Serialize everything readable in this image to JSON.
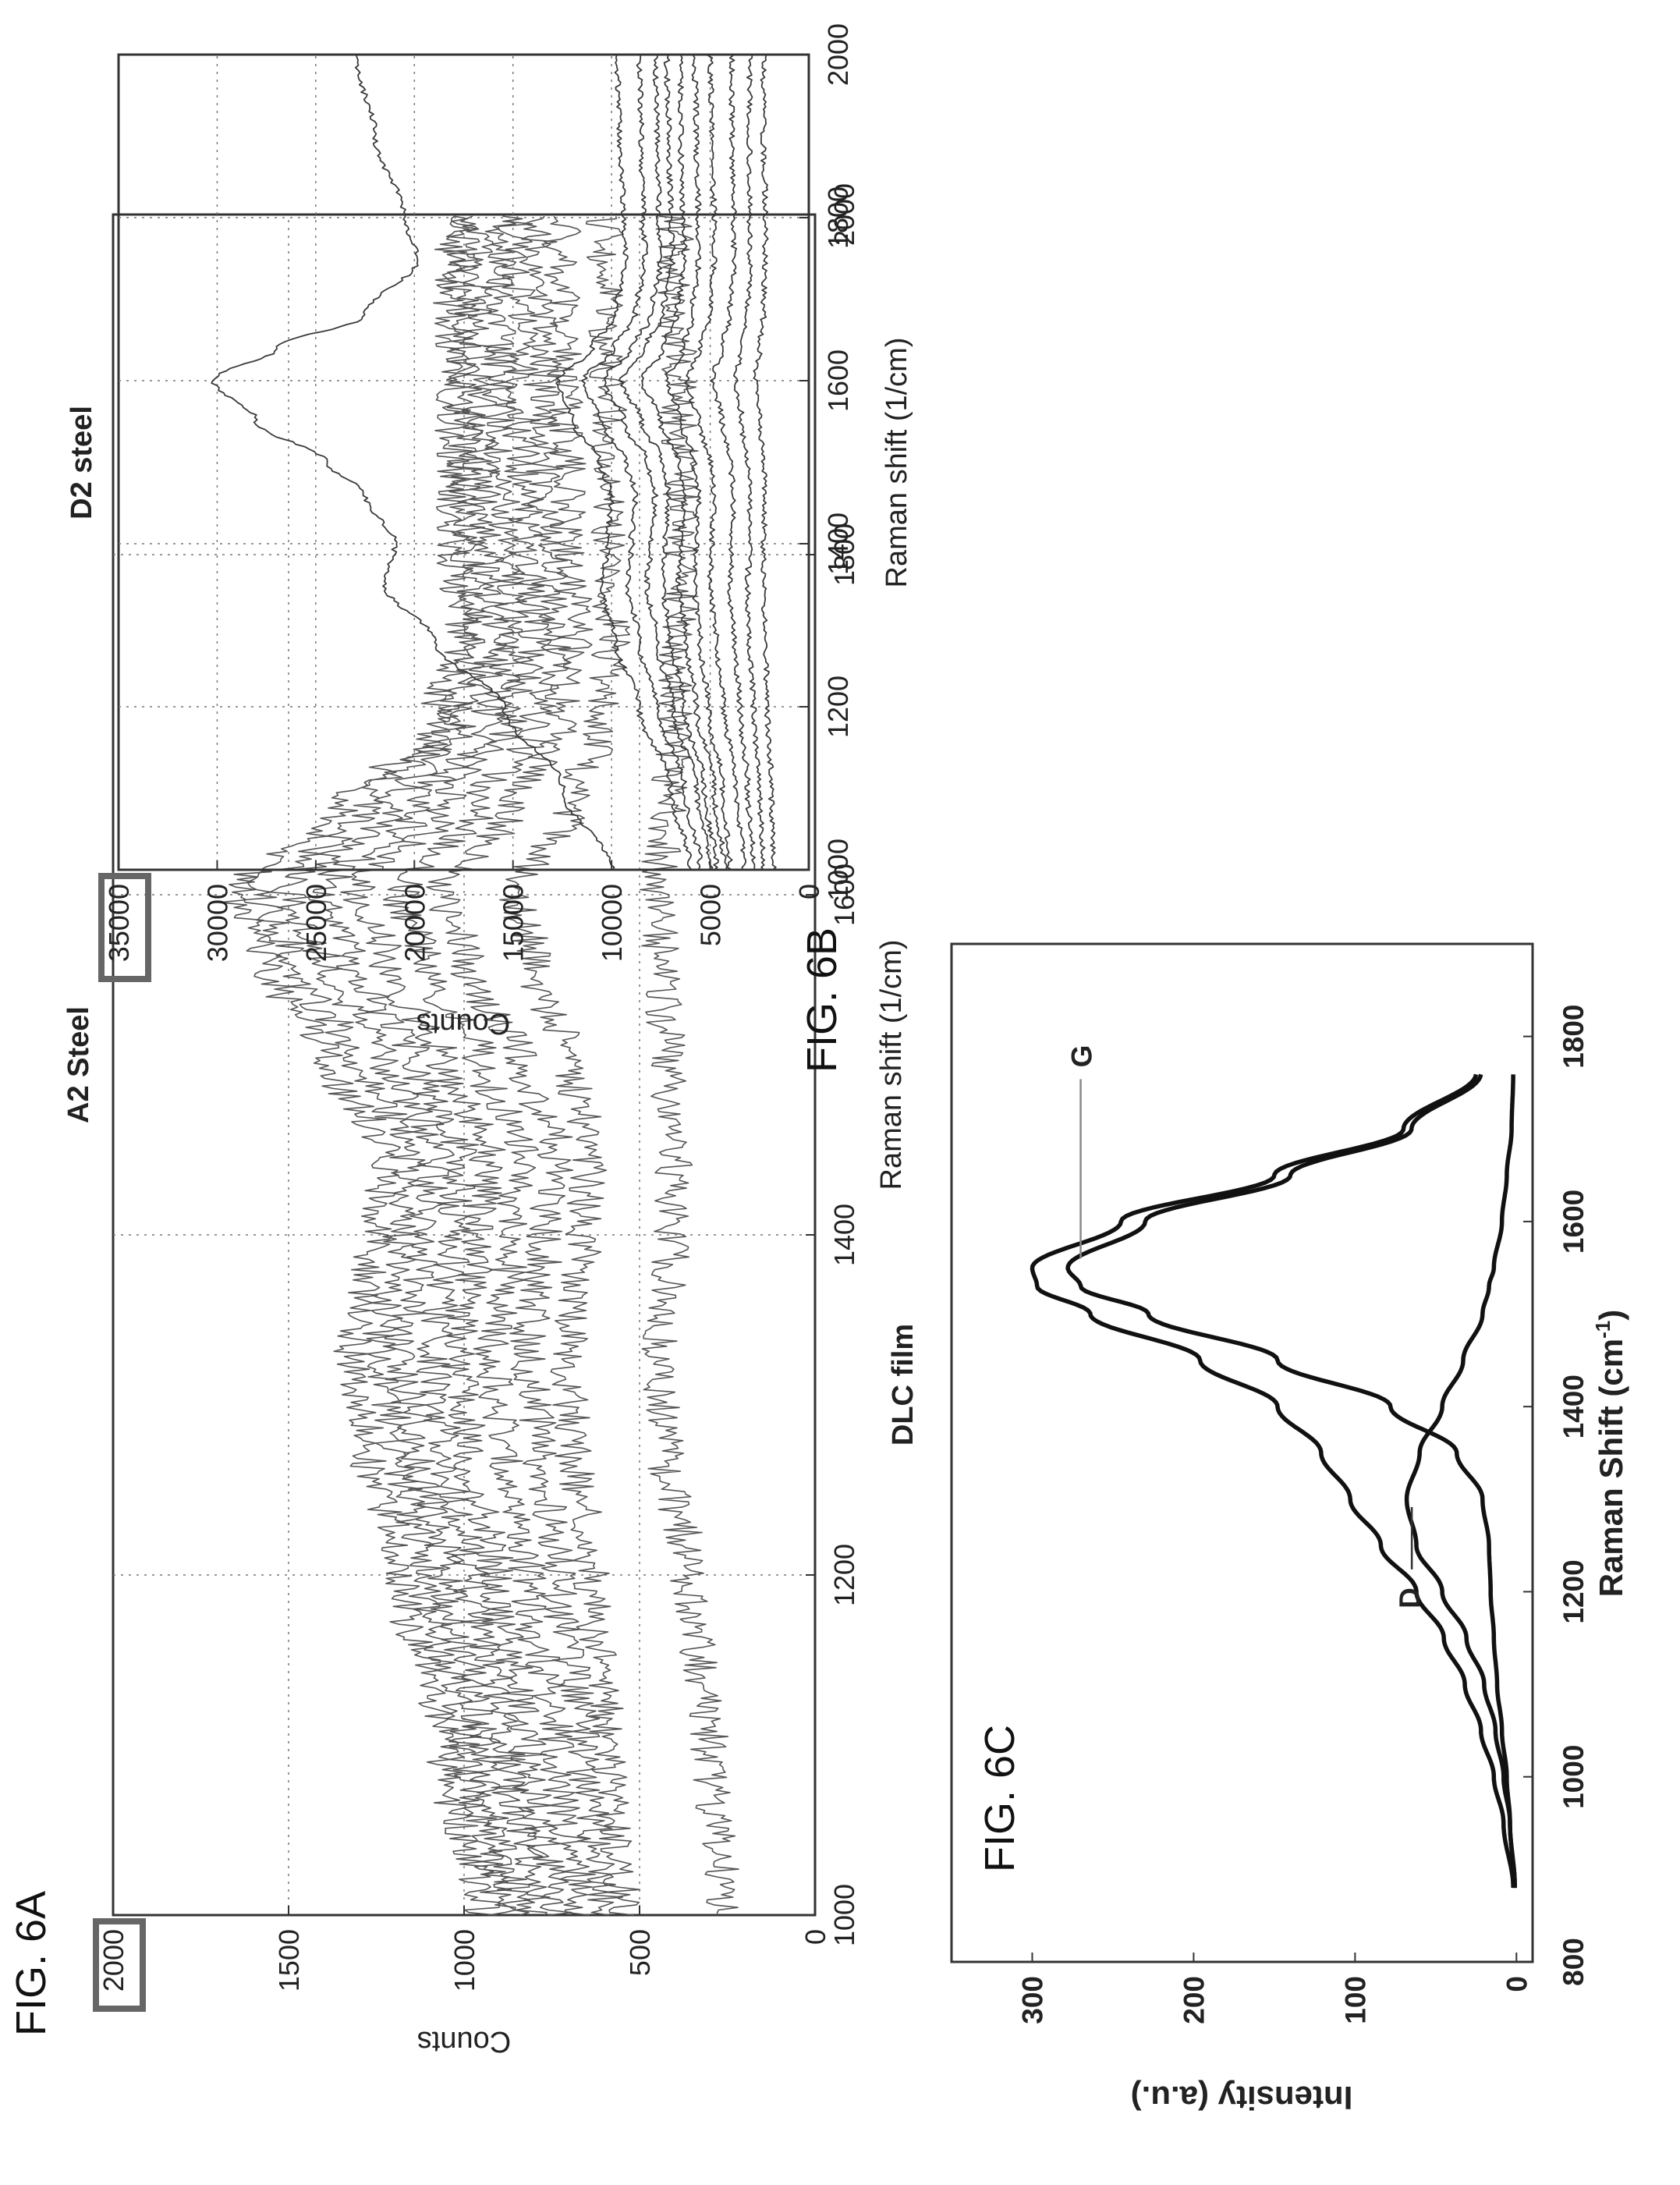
{
  "figures": {
    "a": "FIG. 6A",
    "b": "FIG. 6B",
    "c": "FIG. 6C"
  },
  "chart_data": [
    {
      "id": "6A",
      "type": "line",
      "title": "A2 Steel",
      "xlabel": "Raman shift (1/cm)",
      "ylabel": "Counts",
      "xlim": [
        1000,
        2000
      ],
      "ylim": [
        0,
        2000
      ],
      "xticks": [
        "1000",
        "1200",
        "1400",
        "1600",
        "1800",
        "2000"
      ],
      "yticks": [
        "0",
        "500",
        "1000",
        "1500",
        "2000"
      ],
      "highlighted_tick": "2000",
      "grid": true,
      "noise": "high",
      "x": [
        1000,
        1100,
        1200,
        1280,
        1330,
        1400,
        1450,
        1500,
        1560,
        1600,
        1650,
        1700,
        1750,
        1800,
        1900,
        2000
      ],
      "series": [
        {
          "values": [
            950,
            1060,
            1180,
            1280,
            1320,
            1260,
            1230,
            1380,
            1560,
            1650,
            1350,
            1090,
            1000,
            1030,
            1030,
            1040
          ]
        },
        {
          "values": [
            900,
            1000,
            1110,
            1200,
            1240,
            1180,
            1160,
            1300,
            1480,
            1580,
            1290,
            1040,
            960,
            990,
            1000,
            1010
          ]
        },
        {
          "values": [
            860,
            950,
            1050,
            1140,
            1180,
            1110,
            1080,
            1220,
            1400,
            1500,
            1210,
            990,
            910,
            940,
            960,
            970
          ]
        },
        {
          "values": [
            800,
            880,
            980,
            1060,
            1090,
            1030,
            1010,
            1140,
            1310,
            1400,
            1130,
            930,
            860,
            880,
            900,
            900
          ]
        },
        {
          "values": [
            740,
            820,
            910,
            990,
            1020,
            960,
            930,
            1060,
            1220,
            1300,
            1060,
            870,
            800,
            820,
            840,
            850
          ]
        },
        {
          "values": [
            670,
            740,
            820,
            890,
            920,
            860,
            830,
            950,
            1110,
            1180,
            960,
            800,
            740,
            760,
            780,
            790
          ]
        },
        {
          "values": [
            600,
            660,
            730,
            790,
            820,
            770,
            740,
            840,
            990,
            1060,
            870,
            730,
            680,
            700,
            710,
            720
          ]
        },
        {
          "values": [
            550,
            590,
            640,
            690,
            700,
            660,
            640,
            700,
            800,
            850,
            700,
            610,
            580,
            590,
            590,
            600
          ]
        },
        {
          "values": [
            260,
            300,
            360,
            430,
            440,
            410,
            400,
            420,
            440,
            450,
            420,
            400,
            390,
            380,
            390,
            400
          ]
        }
      ]
    },
    {
      "id": "6B",
      "type": "line",
      "title": "D2 steel",
      "xlabel": "Raman shift (1/cm)",
      "ylabel": "Counts",
      "xlim": [
        1000,
        2000
      ],
      "ylim": [
        0,
        35000
      ],
      "xticks": [
        "1000",
        "1200",
        "1400",
        "1600",
        "1800",
        "2000"
      ],
      "yticks": [
        "0",
        "5000",
        "10000",
        "15000",
        "20000",
        "25000",
        "30000",
        "35000"
      ],
      "highlighted_tick": "35000",
      "grid": true,
      "noise": "low",
      "x": [
        1000,
        1100,
        1200,
        1280,
        1350,
        1400,
        1460,
        1500,
        1550,
        1600,
        1640,
        1680,
        1750,
        1800,
        1900,
        2000
      ],
      "series": [
        {
          "values": [
            10000,
            12500,
            15500,
            19000,
            21500,
            21000,
            22500,
            24500,
            28000,
            30200,
            27000,
            22500,
            19800,
            20500,
            22000,
            23000
          ]
        },
        {
          "values": [
            6000,
            7000,
            8600,
            9800,
            10500,
            10200,
            10000,
            10600,
            12000,
            12700,
            11000,
            9800,
            9300,
            9400,
            9600,
            9700
          ]
        },
        {
          "values": [
            5500,
            6300,
            7700,
            8600,
            9200,
            9000,
            8800,
            9300,
            10500,
            11400,
            9900,
            8800,
            8300,
            8400,
            8500,
            8600
          ]
        },
        {
          "values": [
            5000,
            5700,
            6900,
            7700,
            8200,
            8000,
            7800,
            8200,
            9400,
            10400,
            9000,
            8000,
            7500,
            7600,
            7700,
            7800
          ]
        },
        {
          "values": [
            4700,
            5300,
            6300,
            7000,
            7400,
            7300,
            7100,
            7400,
            8500,
            9500,
            8300,
            7400,
            6900,
            7000,
            7100,
            7200
          ]
        },
        {
          "values": [
            4300,
            4800,
            5700,
            6200,
            6600,
            6500,
            6300,
            6600,
            7500,
            8400,
            7400,
            6700,
            6300,
            6400,
            6500,
            6500
          ]
        },
        {
          "values": [
            4000,
            4400,
            5100,
            5500,
            5800,
            5700,
            5600,
            5800,
            6500,
            7200,
            6400,
            5900,
            5600,
            5600,
            5700,
            5800
          ]
        },
        {
          "values": [
            3300,
            3700,
            4300,
            4700,
            5000,
            4900,
            4800,
            5000,
            5600,
            6200,
            5500,
            5000,
            4800,
            4800,
            4900,
            5000
          ]
        },
        {
          "values": [
            2800,
            3100,
            3500,
            3800,
            4000,
            3900,
            3800,
            4000,
            4400,
            4900,
            4400,
            4000,
            3800,
            3800,
            3900,
            3900
          ]
        },
        {
          "values": [
            2300,
            2500,
            2800,
            3000,
            3100,
            3000,
            3000,
            3100,
            3400,
            3700,
            3400,
            3100,
            3000,
            3000,
            3000,
            3000
          ]
        },
        {
          "values": [
            1800,
            1900,
            2100,
            2200,
            2300,
            2300,
            2200,
            2300,
            2500,
            2700,
            2500,
            2300,
            2200,
            2200,
            2300,
            2300
          ]
        }
      ]
    },
    {
      "id": "6C",
      "type": "line",
      "title": "DLC film",
      "xlabel": "Raman Shift (cm",
      "xlabel_sup": "-1",
      "xlabel_close": ")",
      "ylabel": "Intensity (a.u.)",
      "xlim": [
        800,
        1900
      ],
      "ylim": [
        -10,
        350
      ],
      "xticks": [
        "800",
        "1000",
        "1200",
        "1400",
        "1600",
        "1800"
      ],
      "yticks": [
        "0",
        "100",
        "200",
        "300"
      ],
      "grid": false,
      "annotations": [
        {
          "text": "D",
          "x": 1300,
          "y": 60
        },
        {
          "text": "G",
          "x": 1560,
          "y": 270
        }
      ],
      "x": [
        880,
        950,
        1000,
        1050,
        1100,
        1150,
        1200,
        1250,
        1300,
        1350,
        1400,
        1450,
        1500,
        1530,
        1550,
        1600,
        1650,
        1700,
        1760
      ],
      "series": [
        {
          "values": [
            2,
            8,
            14,
            22,
            32,
            45,
            62,
            84,
            103,
            121,
            148,
            196,
            264,
            297,
            300,
            245,
            150,
            70,
            25
          ]
        },
        {
          "values": [
            1,
            4,
            6,
            9,
            12,
            14,
            16,
            17,
            21,
            37,
            78,
            148,
            228,
            270,
            278,
            230,
            140,
            65,
            22
          ]
        },
        {
          "values": [
            1,
            4,
            8,
            13,
            20,
            31,
            46,
            62,
            68,
            60,
            46,
            33,
            21,
            17,
            14,
            9,
            6,
            3,
            2
          ]
        }
      ]
    }
  ]
}
